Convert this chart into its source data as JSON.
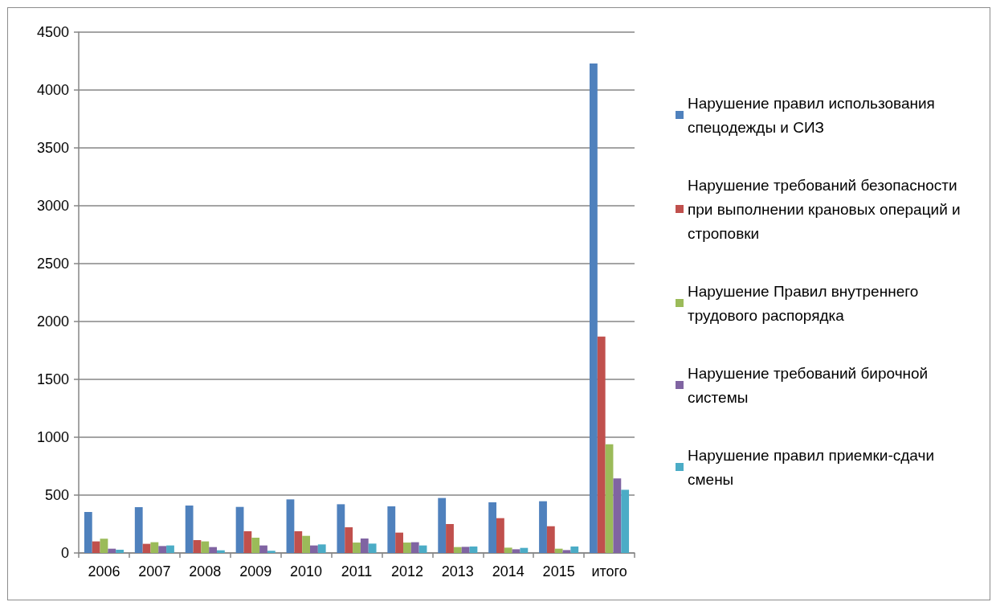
{
  "chart_data": {
    "type": "bar",
    "categories": [
      "2006",
      "2007",
      "2008",
      "2009",
      "2010",
      "2011",
      "2012",
      "2013",
      "2014",
      "2015",
      "итого"
    ],
    "series": [
      {
        "name": "Нарушение правил использования спецодежды и СИЗ",
        "color": "#4f81bd",
        "values": [
          354,
          396,
          410,
          398,
          463,
          421,
          403,
          475,
          438,
          447,
          4230
        ]
      },
      {
        "name": "Нарушение требований безопасности при выполнении крановых операций и строповки",
        "color": "#c0504d",
        "values": [
          100,
          79,
          111,
          188,
          188,
          222,
          176,
          250,
          301,
          231,
          1870
        ]
      },
      {
        "name": "Нарушение Правил внутреннего трудового распорядка",
        "color": "#9bbb59",
        "values": [
          123,
          93,
          100,
          132,
          148,
          90,
          90,
          51,
          46,
          37,
          940
        ]
      },
      {
        "name": "Нарушение требований бирочной системы",
        "color": "#8064a2",
        "values": [
          37,
          60,
          51,
          65,
          65,
          125,
          93,
          53,
          32,
          25,
          644
        ]
      },
      {
        "name": "Нарушение правил приемки-сдачи смены",
        "color": "#4bacc6",
        "values": [
          28,
          65,
          23,
          19,
          74,
          81,
          65,
          56,
          44,
          56,
          546
        ]
      }
    ],
    "ylim": [
      0,
      4500
    ],
    "yticks": [
      0,
      500,
      1000,
      1500,
      2000,
      2500,
      3000,
      3500,
      4000,
      4500
    ],
    "grid": "y",
    "legend": "right"
  }
}
